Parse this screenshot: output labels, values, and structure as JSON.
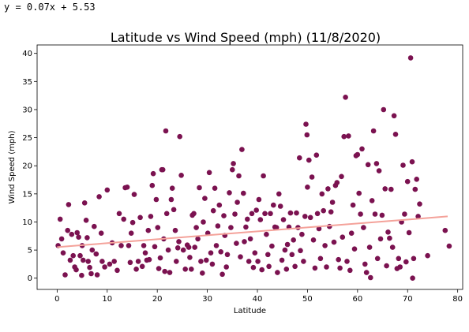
{
  "regression_text": "y = 0.07x + 5.53",
  "chart_data": {
    "type": "scatter",
    "title": "Latitude vs Wind Speed (mph) (11/8/2020)",
    "xlabel": "Latitude",
    "ylabel": "Wind Speed (mph)",
    "xlim": [
      -4,
      81
    ],
    "ylim": [
      -2,
      41.5
    ],
    "xticks": [
      0,
      10,
      20,
      30,
      40,
      50,
      60,
      70,
      80
    ],
    "yticks": [
      0,
      5,
      10,
      15,
      20,
      25,
      30,
      35,
      40
    ],
    "grid": false,
    "point_color": "#7b1250",
    "line_color": "#f4a29a",
    "regression": {
      "slope": 0.07,
      "intercept": 5.53,
      "x_range": [
        0,
        78
      ]
    },
    "points": [
      [
        0.2,
        5.8
      ],
      [
        0.6,
        10.5
      ],
      [
        0.9,
        7.0
      ],
      [
        1.2,
        4.5
      ],
      [
        1.6,
        0.6
      ],
      [
        2.1,
        8.5
      ],
      [
        2.3,
        13.1
      ],
      [
        2.6,
        3.2
      ],
      [
        2.9,
        7.8
      ],
      [
        3.2,
        4.0
      ],
      [
        3.5,
        2.0
      ],
      [
        3.8,
        1.5
      ],
      [
        4.0,
        8.1
      ],
      [
        4.3,
        7.3
      ],
      [
        4.6,
        4.0
      ],
      [
        4.9,
        0.5
      ],
      [
        5.0,
        5.8
      ],
      [
        5.2,
        3.2
      ],
      [
        5.5,
        13.4
      ],
      [
        5.8,
        10.3
      ],
      [
        6.0,
        7.2
      ],
      [
        6.2,
        3.0
      ],
      [
        6.5,
        1.9
      ],
      [
        6.8,
        0.8
      ],
      [
        7.0,
        5.0
      ],
      [
        7.4,
        9.2
      ],
      [
        7.8,
        4.3
      ],
      [
        8.0,
        0.6
      ],
      [
        8.4,
        14.5
      ],
      [
        8.8,
        8.0
      ],
      [
        9.0,
        3.0
      ],
      [
        9.5,
        2.0
      ],
      [
        10.0,
        15.7
      ],
      [
        10.5,
        2.5
      ],
      [
        11.0,
        6.3
      ],
      [
        11.4,
        3.0
      ],
      [
        12.0,
        1.4
      ],
      [
        12.4,
        11.5
      ],
      [
        12.8,
        5.8
      ],
      [
        13.3,
        10.5
      ],
      [
        13.6,
        16.1
      ],
      [
        14.0,
        16.2
      ],
      [
        14.3,
        5.8
      ],
      [
        14.6,
        2.8
      ],
      [
        14.8,
        8.0
      ],
      [
        15.1,
        9.9
      ],
      [
        15.4,
        14.9
      ],
      [
        15.8,
        1.6
      ],
      [
        16.2,
        3.0
      ],
      [
        16.6,
        10.8
      ],
      [
        17.0,
        2.1
      ],
      [
        17.3,
        5.8
      ],
      [
        17.6,
        4.5
      ],
      [
        17.9,
        3.2
      ],
      [
        18.2,
        8.5
      ],
      [
        18.4,
        3.3
      ],
      [
        18.7,
        11.0
      ],
      [
        19.0,
        16.5
      ],
      [
        19.2,
        18.6
      ],
      [
        19.5,
        5.6
      ],
      [
        19.8,
        14.0
      ],
      [
        20.1,
        9.0
      ],
      [
        20.3,
        1.7
      ],
      [
        20.6,
        3.6
      ],
      [
        20.9,
        19.3
      ],
      [
        21.1,
        19.3
      ],
      [
        21.3,
        7.0
      ],
      [
        21.5,
        1.2
      ],
      [
        21.7,
        26.2
      ],
      [
        21.9,
        11.5
      ],
      [
        22.2,
        5.0
      ],
      [
        22.5,
        1.0
      ],
      [
        22.8,
        14.0
      ],
      [
        23.0,
        16.0
      ],
      [
        23.3,
        12.2
      ],
      [
        23.6,
        8.5
      ],
      [
        23.8,
        3.0
      ],
      [
        24.1,
        5.4
      ],
      [
        24.3,
        6.5
      ],
      [
        24.5,
        25.2
      ],
      [
        24.8,
        18.3
      ],
      [
        25.2,
        5.0
      ],
      [
        25.6,
        1.6
      ],
      [
        26.0,
        5.9
      ],
      [
        26.3,
        5.5
      ],
      [
        26.5,
        3.7
      ],
      [
        26.8,
        1.6
      ],
      [
        27.0,
        11.2
      ],
      [
        27.3,
        11.5
      ],
      [
        27.5,
        5.5
      ],
      [
        27.8,
        9.0
      ],
      [
        28.1,
        7.0
      ],
      [
        28.4,
        16.1
      ],
      [
        28.7,
        3.0
      ],
      [
        29.0,
        0.9
      ],
      [
        29.2,
        10.0
      ],
      [
        29.5,
        14.2
      ],
      [
        29.8,
        3.2
      ],
      [
        30.1,
        8.0
      ],
      [
        30.4,
        18.8
      ],
      [
        30.7,
        4.5
      ],
      [
        31.0,
        2.5
      ],
      [
        31.2,
        12.0
      ],
      [
        31.5,
        16.0
      ],
      [
        31.8,
        5.8
      ],
      [
        32.1,
        9.3
      ],
      [
        32.4,
        13.0
      ],
      [
        32.7,
        4.7
      ],
      [
        33.0,
        0.7
      ],
      [
        33.3,
        11.1
      ],
      [
        33.5,
        7.6
      ],
      [
        33.8,
        2.0
      ],
      [
        34.0,
        4.2
      ],
      [
        34.4,
        15.2
      ],
      [
        34.7,
        9.0
      ],
      [
        35.0,
        19.3
      ],
      [
        35.2,
        20.4
      ],
      [
        35.5,
        11.4
      ],
      [
        35.8,
        6.2
      ],
      [
        36.0,
        13.5
      ],
      [
        36.3,
        18.2
      ],
      [
        36.6,
        3.8
      ],
      [
        36.9,
        22.9
      ],
      [
        37.2,
        15.1
      ],
      [
        37.4,
        6.5
      ],
      [
        37.7,
        9.1
      ],
      [
        38.0,
        10.5
      ],
      [
        38.3,
        3.0
      ],
      [
        38.6,
        7.0
      ],
      [
        38.9,
        11.5
      ],
      [
        39.2,
        1.9
      ],
      [
        39.5,
        4.5
      ],
      [
        39.8,
        12.1
      ],
      [
        40.1,
        3.0
      ],
      [
        40.3,
        14.0
      ],
      [
        40.6,
        10.4
      ],
      [
        40.9,
        1.5
      ],
      [
        41.2,
        18.2
      ],
      [
        41.5,
        11.5
      ],
      [
        41.8,
        7.8
      ],
      [
        42.1,
        4.2
      ],
      [
        42.3,
        2.1
      ],
      [
        42.6,
        11.5
      ],
      [
        42.9,
        5.7
      ],
      [
        43.2,
        13.0
      ],
      [
        43.5,
        9.1
      ],
      [
        43.8,
        9.0
      ],
      [
        44.0,
        1.0
      ],
      [
        44.3,
        15.0
      ],
      [
        44.6,
        12.8
      ],
      [
        44.9,
        3.2
      ],
      [
        45.2,
        10.4
      ],
      [
        45.5,
        5.0
      ],
      [
        45.8,
        1.6
      ],
      [
        46.0,
        6.0
      ],
      [
        46.3,
        9.1
      ],
      [
        46.6,
        11.6
      ],
      [
        46.9,
        4.2
      ],
      [
        47.2,
        6.8
      ],
      [
        47.5,
        2.1
      ],
      [
        47.8,
        11.6
      ],
      [
        48.1,
        9.0
      ],
      [
        48.4,
        21.4
      ],
      [
        48.6,
        4.9
      ],
      [
        48.9,
        7.8
      ],
      [
        49.2,
        3.0
      ],
      [
        49.5,
        11.0
      ],
      [
        49.7,
        27.4
      ],
      [
        49.9,
        25.5
      ],
      [
        50.0,
        16.2
      ],
      [
        50.3,
        21.0
      ],
      [
        50.6,
        10.8
      ],
      [
        50.9,
        18.0
      ],
      [
        51.2,
        6.8
      ],
      [
        51.5,
        1.8
      ],
      [
        51.8,
        21.9
      ],
      [
        52.0,
        11.5
      ],
      [
        52.3,
        8.8
      ],
      [
        52.6,
        3.5
      ],
      [
        52.9,
        15.0
      ],
      [
        53.2,
        12.0
      ],
      [
        53.5,
        5.8
      ],
      [
        53.8,
        2.0
      ],
      [
        54.1,
        15.9
      ],
      [
        54.4,
        9.2
      ],
      [
        54.7,
        11.8
      ],
      [
        55.0,
        13.5
      ],
      [
        55.3,
        6.4
      ],
      [
        55.6,
        16.5
      ],
      [
        55.9,
        17.0
      ],
      [
        56.2,
        3.3
      ],
      [
        56.5,
        1.8
      ],
      [
        56.8,
        18.1
      ],
      [
        57.0,
        7.3
      ],
      [
        57.3,
        25.2
      ],
      [
        57.6,
        32.2
      ],
      [
        57.9,
        3.0
      ],
      [
        58.2,
        25.3
      ],
      [
        58.5,
        1.4
      ],
      [
        58.8,
        8.0
      ],
      [
        59.1,
        13.0
      ],
      [
        59.4,
        5.2
      ],
      [
        59.7,
        21.8
      ],
      [
        60.0,
        22.0
      ],
      [
        60.3,
        15.1
      ],
      [
        60.6,
        11.4
      ],
      [
        60.9,
        23.0
      ],
      [
        61.2,
        9.0
      ],
      [
        61.5,
        2.5
      ],
      [
        61.8,
        1.0
      ],
      [
        62.1,
        20.2
      ],
      [
        62.4,
        5.5
      ],
      [
        62.6,
        0.1
      ],
      [
        62.9,
        13.8
      ],
      [
        63.2,
        26.2
      ],
      [
        63.5,
        11.4
      ],
      [
        63.8,
        20.4
      ],
      [
        64.0,
        3.5
      ],
      [
        64.3,
        19.1
      ],
      [
        64.6,
        7.0
      ],
      [
        64.9,
        11.2
      ],
      [
        65.2,
        30.0
      ],
      [
        65.5,
        15.9
      ],
      [
        65.8,
        2.2
      ],
      [
        66.1,
        8.2
      ],
      [
        66.4,
        7.1
      ],
      [
        66.7,
        15.8
      ],
      [
        67.0,
        5.5
      ],
      [
        67.3,
        28.9
      ],
      [
        67.6,
        25.6
      ],
      [
        67.9,
        1.7
      ],
      [
        68.2,
        3.5
      ],
      [
        68.5,
        2.0
      ],
      [
        68.8,
        10.0
      ],
      [
        69.1,
        20.1
      ],
      [
        69.4,
        11.4
      ],
      [
        69.7,
        2.9
      ],
      [
        70.0,
        17.2
      ],
      [
        70.3,
        8.1
      ],
      [
        70.6,
        39.2
      ],
      [
        70.9,
        20.7
      ],
      [
        71.2,
        3.5
      ],
      [
        71.5,
        15.8
      ],
      [
        71.8,
        17.6
      ],
      [
        72.1,
        11.0
      ],
      [
        72.4,
        13.2
      ],
      [
        77.5,
        8.5
      ],
      [
        78.3,
        5.7
      ],
      [
        74.0,
        4.0
      ],
      [
        71.0,
        0.0
      ]
    ]
  }
}
